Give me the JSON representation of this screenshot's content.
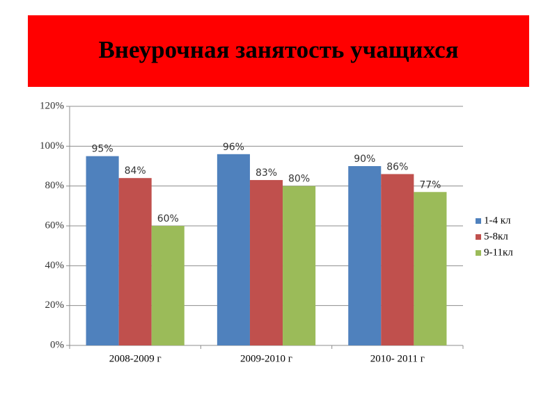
{
  "chart_data": {
    "type": "bar",
    "title": "Внеурочная занятость учащихся",
    "categories": [
      "2008-2009 г",
      "2009-2010 г",
      "2010- 2011 г"
    ],
    "series": [
      {
        "name": "1-4 кл",
        "color": "#4f81bd",
        "values": [
          95,
          96,
          90
        ],
        "value_labels": [
          "95%",
          "96%",
          "90%"
        ]
      },
      {
        "name": "5-8кл",
        "color": "#c0504d",
        "values": [
          84,
          83,
          86
        ],
        "value_labels": [
          "84%",
          "83%",
          "86%"
        ]
      },
      {
        "name": "9-11кл",
        "color": "#9bbb59",
        "values": [
          60,
          80,
          77
        ],
        "value_labels": [
          "60%",
          "80%",
          "77%"
        ]
      }
    ],
    "ylim": [
      0,
      120
    ],
    "yticks": [
      {
        "value": 0,
        "label": "0%"
      },
      {
        "value": 20,
        "label": "20%"
      },
      {
        "value": 40,
        "label": "40%"
      },
      {
        "value": 60,
        "label": "60%"
      },
      {
        "value": 80,
        "label": "80%"
      },
      {
        "value": 100,
        "label": "100%"
      },
      {
        "value": 120,
        "label": "120%"
      }
    ],
    "grid": true,
    "legend": "right"
  }
}
